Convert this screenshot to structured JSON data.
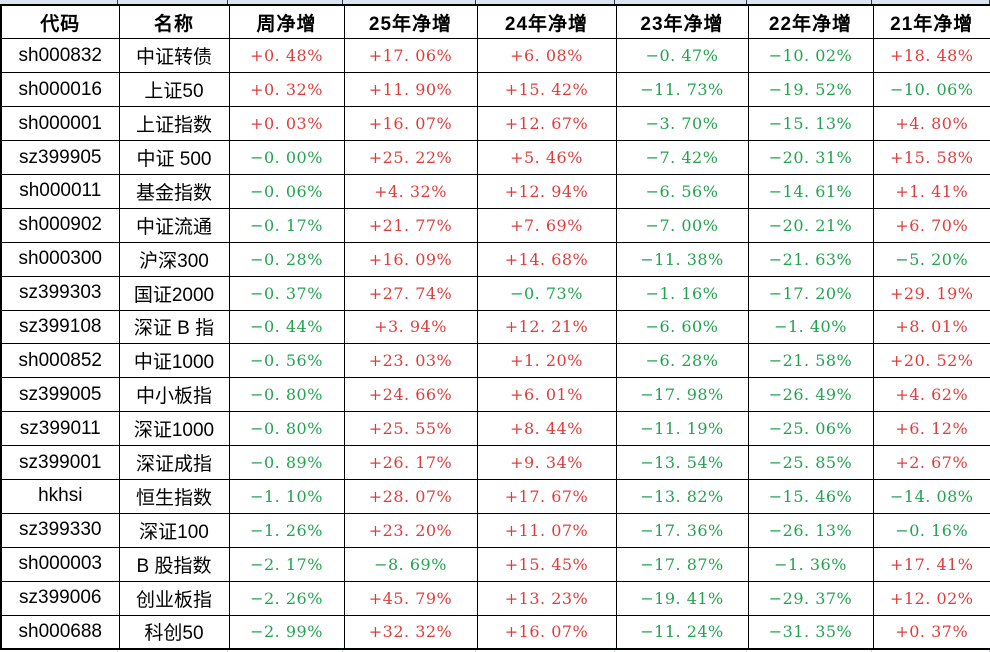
{
  "chart_data": {
    "type": "table",
    "columns": [
      "代码",
      "名称",
      "周净增",
      "25年净增",
      "24年净增",
      "23年净增",
      "22年净增",
      "21年净增"
    ],
    "rows": [
      [
        "sh000832",
        "中证转债",
        "+0.48%",
        "+17.06%",
        "+6.08%",
        "-0.47%",
        "-10.02%",
        "+18.48%"
      ],
      [
        "sh000016",
        "上证50",
        "+0.32%",
        "+11.90%",
        "+15.42%",
        "-11.73%",
        "-19.52%",
        "-10.06%"
      ],
      [
        "sh000001",
        "上证指数",
        "+0.03%",
        "+16.07%",
        "+12.67%",
        "-3.70%",
        "-15.13%",
        "+4.80%"
      ],
      [
        "sz399905",
        "中证 500",
        "-0.00%",
        "+25.22%",
        "+5.46%",
        "-7.42%",
        "-20.31%",
        "+15.58%"
      ],
      [
        "sh000011",
        "基金指数",
        "-0.06%",
        "+4.32%",
        "+12.94%",
        "-6.56%",
        "-14.61%",
        "+1.41%"
      ],
      [
        "sh000902",
        "中证流通",
        "-0.17%",
        "+21.77%",
        "+7.69%",
        "-7.00%",
        "-20.21%",
        "+6.70%"
      ],
      [
        "sh000300",
        "沪深300",
        "-0.28%",
        "+16.09%",
        "+14.68%",
        "-11.38%",
        "-21.63%",
        "-5.20%"
      ],
      [
        "sz399303",
        "国证2000",
        "-0.37%",
        "+27.74%",
        "-0.73%",
        "-1.16%",
        "-17.20%",
        "+29.19%"
      ],
      [
        "sz399108",
        "深证 B 指",
        "-0.44%",
        "+3.94%",
        "+12.21%",
        "-6.60%",
        "-1.40%",
        "+8.01%"
      ],
      [
        "sh000852",
        "中证1000",
        "-0.56%",
        "+23.03%",
        "+1.20%",
        "-6.28%",
        "-21.58%",
        "+20.52%"
      ],
      [
        "sz399005",
        "中小板指",
        "-0.80%",
        "+24.66%",
        "+6.01%",
        "-17.98%",
        "-26.49%",
        "+4.62%"
      ],
      [
        "sz399011",
        "深证1000",
        "-0.80%",
        "+25.55%",
        "+8.44%",
        "-11.19%",
        "-25.06%",
        "+6.12%"
      ],
      [
        "sz399001",
        "深证成指",
        "-0.89%",
        "+26.17%",
        "+9.34%",
        "-13.54%",
        "-25.85%",
        "+2.67%"
      ],
      [
        "hkhsi",
        "恒生指数",
        "-1.10%",
        "+28.07%",
        "+17.67%",
        "-13.82%",
        "-15.46%",
        "-14.08%"
      ],
      [
        "sz399330",
        "深证100",
        "-1.26%",
        "+23.20%",
        "+11.07%",
        "-17.36%",
        "-26.13%",
        "-0.16%"
      ],
      [
        "sh000003",
        "B 股指数",
        "-2.17%",
        "-8.69%",
        "+15.45%",
        "-17.87%",
        "-1.36%",
        "+17.41%"
      ],
      [
        "sz399006",
        "创业板指",
        "-2.26%",
        "+45.79%",
        "+13.23%",
        "-19.41%",
        "-29.37%",
        "+12.02%"
      ],
      [
        "sh000688",
        "科创50",
        "-2.99%",
        "+32.32%",
        "+16.07%",
        "-11.24%",
        "-31.35%",
        "+0.37%"
      ]
    ]
  },
  "styles": {
    "positive_color": "#e03c3c",
    "negative_color": "#22a350",
    "grid_color": "#000000",
    "header_text_color": "#000000",
    "top_edge_fill": "#dbe5f1"
  }
}
